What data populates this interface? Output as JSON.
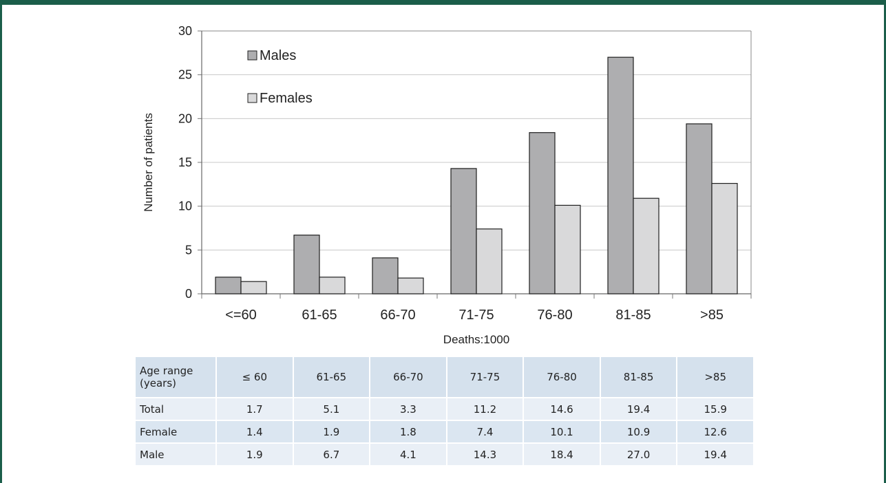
{
  "chart_data": {
    "type": "bar",
    "categories": [
      "<=60",
      "61-65",
      "66-70",
      "71-75",
      "76-80",
      "81-85",
      ">85"
    ],
    "series": [
      {
        "name": "Males",
        "values": [
          1.9,
          6.7,
          4.1,
          14.3,
          18.4,
          27.0,
          19.4
        ],
        "color": "#aeaeb0"
      },
      {
        "name": "Females",
        "values": [
          1.4,
          1.9,
          1.8,
          7.4,
          10.1,
          10.9,
          12.6
        ],
        "color": "#d9d9da"
      }
    ],
    "title": "",
    "xlabel": "Deaths:1000",
    "ylabel": "Number of patients",
    "ylim": [
      0,
      30
    ],
    "yticks": [
      0,
      5,
      10,
      15,
      20,
      25,
      30
    ],
    "grid": true,
    "legend_position": "top-left"
  },
  "table": {
    "header": [
      "Age range (years)",
      "≤ 60",
      "61-65",
      "66-70",
      "71-75",
      "76-80",
      "81-85",
      ">85"
    ],
    "rows": [
      [
        "Total",
        "1.7",
        "5.1",
        "3.3",
        "11.2",
        "14.6",
        "19.4",
        "15.9"
      ],
      [
        "Female",
        "1.4",
        "1.9",
        "1.8",
        "7.4",
        "10.1",
        "10.9",
        "12.6"
      ],
      [
        "Male",
        "1.9",
        "6.7",
        "4.1",
        "14.3",
        "18.4",
        "27.0",
        "19.4"
      ]
    ]
  },
  "colors": {
    "frame": "#1b5e4a",
    "table_header_bg": "#d5e1ed",
    "table_row_bg": "#e9eff6"
  }
}
